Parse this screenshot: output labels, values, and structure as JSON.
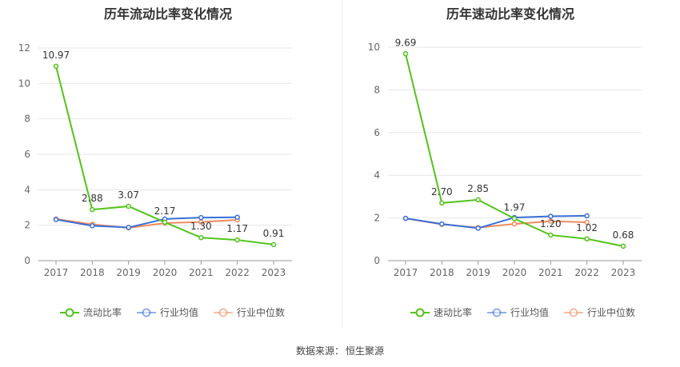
{
  "chart_data": [
    {
      "type": "line",
      "title": "历年流动比率变化情况",
      "categories": [
        "2017",
        "2018",
        "2019",
        "2020",
        "2021",
        "2022",
        "2023"
      ],
      "ylim": [
        0,
        12
      ],
      "yticks": [
        0,
        2,
        4,
        6,
        8,
        10,
        12
      ],
      "grid": true,
      "legend_position": "bottom",
      "series": [
        {
          "name": "流动比率",
          "color": "#52c41a",
          "values": [
            10.97,
            2.88,
            3.07,
            2.17,
            1.3,
            1.17,
            0.91
          ],
          "labels": [
            "10.97",
            "2.88",
            "3.07",
            "2.17",
            "1.30",
            "1.17",
            "0.91"
          ]
        },
        {
          "name": "行业均值",
          "color": "#3a6fd8",
          "values": [
            2.32,
            1.97,
            1.87,
            2.35,
            2.43,
            2.45,
            null
          ]
        },
        {
          "name": "行业中位数",
          "color": "#f08a5d",
          "values": [
            2.35,
            2.05,
            1.85,
            2.12,
            2.18,
            2.3,
            null
          ]
        }
      ]
    },
    {
      "type": "line",
      "title": "历年速动比率变化情况",
      "categories": [
        "2017",
        "2018",
        "2019",
        "2020",
        "2021",
        "2022",
        "2023"
      ],
      "ylim": [
        0,
        10
      ],
      "yticks": [
        0,
        2,
        4,
        6,
        8,
        10
      ],
      "grid": true,
      "legend_position": "bottom",
      "series": [
        {
          "name": "速动比率",
          "color": "#52c41a",
          "values": [
            9.69,
            2.7,
            2.85,
            1.97,
            1.2,
            1.02,
            0.68
          ],
          "labels": [
            "9.69",
            "2.70",
            "2.85",
            "1.97",
            "1.20",
            "1.02",
            "0.68"
          ]
        },
        {
          "name": "行业均值",
          "color": "#3a6fd8",
          "values": [
            1.98,
            1.72,
            1.52,
            2.02,
            2.08,
            2.1,
            null
          ]
        },
        {
          "name": "行业中位数",
          "color": "#f08a5d",
          "values": [
            1.98,
            1.7,
            1.55,
            1.72,
            1.85,
            1.8,
            null
          ]
        }
      ]
    }
  ],
  "footer": {
    "label": "数据来源：",
    "source": "恒生聚源"
  }
}
